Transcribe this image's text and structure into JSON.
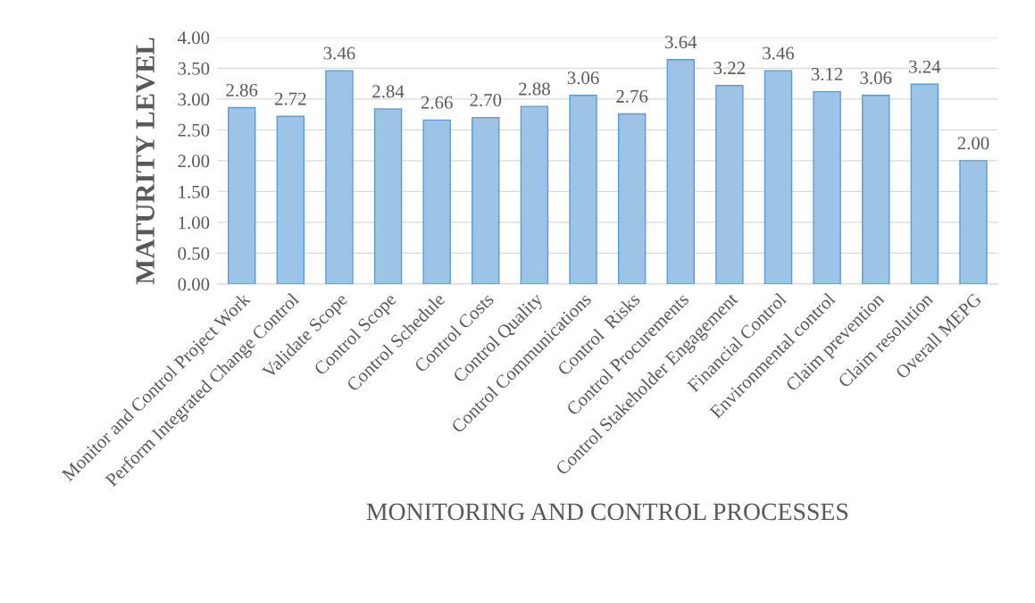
{
  "chart_data": {
    "type": "bar",
    "xlabel": "MONITORING AND CONTROL PROCESSES",
    "ylabel": "MATURITY LEVEL",
    "categories": [
      "Monitor and Control Project Work",
      "Perform Integrated Change Control",
      "Validate Scope",
      "Control Scope",
      "Control Schedule",
      "Control Costs",
      "Control Quality",
      "Control Communications",
      "Control  Risks",
      "Control Procurements",
      "Control Stakeholder Engagement",
      "Financial Control",
      "Environmental control",
      "Claim prevention",
      "Claim resolution",
      "Overall MEPG"
    ],
    "values": [
      2.86,
      2.72,
      3.46,
      2.84,
      2.66,
      2.7,
      2.88,
      3.06,
      2.76,
      3.64,
      3.22,
      3.46,
      3.12,
      3.06,
      3.24,
      2.0
    ],
    "value_labels": [
      "2.86",
      "2.72",
      "3.46",
      "2.84",
      "2.66",
      "2.70",
      "2.88",
      "3.06",
      "2.76",
      "3.64",
      "3.22",
      "3.46",
      "3.12",
      "3.06",
      "3.24",
      "2.00"
    ],
    "color": "#9dc3e6",
    "ylim": [
      0,
      4
    ],
    "yticks": [
      {
        "value": 0,
        "label": "0.00"
      },
      {
        "value": 0.5,
        "label": "0.50"
      },
      {
        "value": 1,
        "label": "1.00"
      },
      {
        "value": 1.5,
        "label": "1.50"
      },
      {
        "value": 2,
        "label": "2.00"
      },
      {
        "value": 2.5,
        "label": "2.50"
      },
      {
        "value": 3,
        "label": "3.00"
      },
      {
        "value": 3.5,
        "label": "3.50"
      },
      {
        "value": 4,
        "label": "4.00"
      }
    ],
    "grid": "y",
    "legend": false
  }
}
